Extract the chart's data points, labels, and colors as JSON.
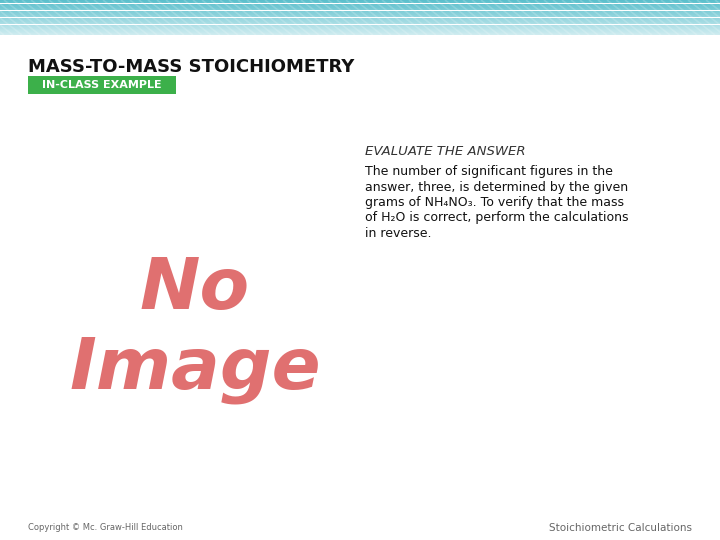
{
  "title": "MASS-TO-MASS STOICHIOMETRY",
  "badge_text": "IN-CLASS EXAMPLE",
  "badge_color": "#3cb04a",
  "badge_text_color": "#ffffff",
  "header_color_top": "#5bbfcc",
  "header_color_bottom": "#cce8ee",
  "background_color": "#ffffff",
  "evaluate_title": "EVALUATE THE ANSWER",
  "evaluate_body_lines": [
    "The number of significant figures in the",
    "answer, three, is determined by the given",
    "grams of NH₄NO₃. To verify that the mass",
    "of H₂O is correct, perform the calculations",
    "in reverse."
  ],
  "no_image_text1": "No",
  "no_image_text2": "Image",
  "no_image_color": "#e07070",
  "footer_left": "Copyright © Mc. Graw-Hill Education",
  "footer_right": "Stoichiometric Calculations",
  "footer_color": "#666666",
  "fig_width": 7.2,
  "fig_height": 5.4,
  "dpi": 100
}
